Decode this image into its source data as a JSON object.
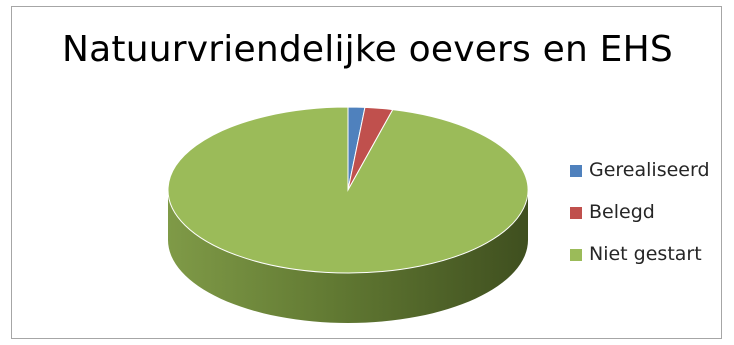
{
  "chart_data": {
    "type": "pie",
    "style": "3d",
    "title": "Natuurvriendelijke oevers en EHS",
    "categories": [
      "Gerealiseerd",
      "Belegd",
      "Niet gestart"
    ],
    "values": [
      1.5,
      2.5,
      96
    ],
    "unit": "%",
    "colors": [
      "#4f81bd",
      "#c0504d",
      "#9bbb59"
    ],
    "legend_position": "right"
  }
}
